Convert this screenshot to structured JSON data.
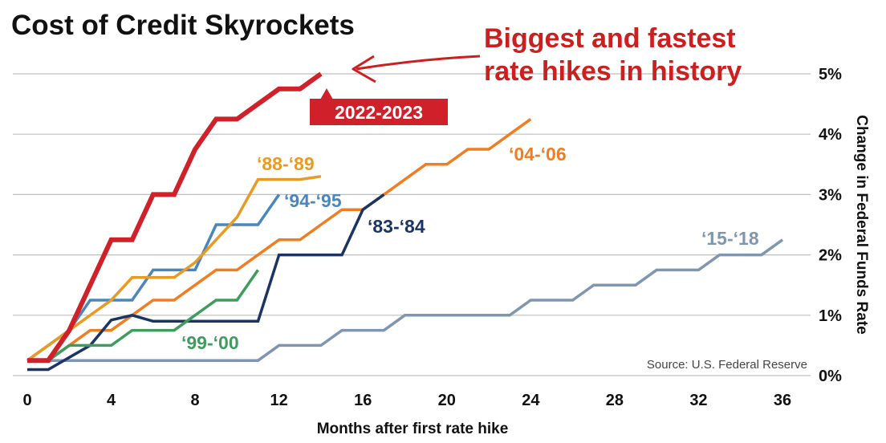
{
  "title": "Cost of Credit Skyrockets",
  "callout": [
    "Biggest and fastest",
    "rate hikes in history"
  ],
  "source": "Source: U.S. Federal Reserve",
  "colors": {
    "accent": "#cc1f1f",
    "grid": "#bdbdbd"
  },
  "chart_data": {
    "type": "line",
    "title": "Cost of Credit Skyrockets",
    "xlabel": "Months after first rate hike",
    "ylabel": "Change in Federal Funds Rate",
    "xlim": [
      0,
      36
    ],
    "ylim": [
      0,
      5
    ],
    "x_ticks": [
      0,
      4,
      8,
      12,
      16,
      20,
      24,
      28,
      32,
      36
    ],
    "x_tick_labels": [
      "0",
      "4",
      "8",
      "12",
      "16",
      "20",
      "24",
      "28",
      "32",
      "36"
    ],
    "y_ticks": [
      0,
      1,
      2,
      3,
      4,
      5
    ],
    "y_tick_labels": [
      "0%",
      "1%",
      "2%",
      "3%",
      "4%",
      "5%"
    ],
    "grid": true,
    "series": [
      {
        "name": "'15-'18",
        "color": "#8096b0",
        "x": [
          0,
          1,
          2,
          3,
          4,
          5,
          6,
          7,
          8,
          9,
          10,
          11,
          12,
          13,
          14,
          15,
          16,
          17,
          18,
          19,
          20,
          21,
          22,
          23,
          24,
          25,
          26,
          27,
          28,
          29,
          30,
          31,
          32,
          33,
          34,
          35,
          36
        ],
        "values": [
          0.25,
          0.25,
          0.25,
          0.25,
          0.25,
          0.25,
          0.25,
          0.25,
          0.25,
          0.25,
          0.25,
          0.25,
          0.5,
          0.5,
          0.5,
          0.75,
          0.75,
          0.75,
          1.0,
          1.0,
          1.0,
          1.0,
          1.0,
          1.0,
          1.25,
          1.25,
          1.25,
          1.5,
          1.5,
          1.5,
          1.75,
          1.75,
          1.75,
          2.0,
          2.0,
          2.0,
          2.25
        ]
      },
      {
        "name": "'04-'06",
        "color": "#ef7d22",
        "x": [
          0,
          1,
          2,
          3,
          4,
          5,
          6,
          7,
          8,
          9,
          10,
          11,
          12,
          13,
          14,
          15,
          16,
          17,
          18,
          19,
          20,
          21,
          22,
          23,
          24
        ],
        "values": [
          0.25,
          0.25,
          0.5,
          0.75,
          0.75,
          1.0,
          1.25,
          1.25,
          1.5,
          1.75,
          1.75,
          2.0,
          2.25,
          2.25,
          2.5,
          2.75,
          2.75,
          3.0,
          3.25,
          3.5,
          3.5,
          3.75,
          3.75,
          4.0,
          4.25
        ]
      },
      {
        "name": "'83-'84",
        "color": "#1c3461",
        "x": [
          0,
          1,
          2,
          3,
          4,
          5,
          6,
          7,
          8,
          9,
          10,
          11,
          12,
          13,
          14,
          15,
          16,
          17
        ],
        "values": [
          0.1,
          0.1,
          0.3,
          0.5,
          0.92,
          1.0,
          0.9,
          0.9,
          0.9,
          0.9,
          0.9,
          0.9,
          2.0,
          2.0,
          2.0,
          2.0,
          2.75,
          3.0
        ]
      },
      {
        "name": "'99-'00",
        "color": "#3f9c5e",
        "x": [
          0,
          1,
          2,
          3,
          4,
          5,
          6,
          7,
          8,
          9,
          10,
          11
        ],
        "values": [
          0.25,
          0.25,
          0.5,
          0.5,
          0.5,
          0.75,
          0.75,
          0.75,
          1.0,
          1.25,
          1.25,
          1.75
        ]
      },
      {
        "name": "'94-'95",
        "color": "#4a86bd",
        "x": [
          0,
          1,
          2,
          3,
          4,
          5,
          6,
          7,
          8,
          9,
          10,
          11,
          12
        ],
        "values": [
          0.25,
          0.5,
          0.75,
          1.25,
          1.25,
          1.25,
          1.75,
          1.75,
          1.75,
          2.5,
          2.5,
          2.5,
          3.0
        ]
      },
      {
        "name": "'88-'89",
        "color": "#e89a22",
        "x": [
          0,
          1,
          2,
          3,
          4,
          5,
          6,
          7,
          8,
          9,
          10,
          11,
          12,
          13,
          14
        ],
        "values": [
          0.25,
          0.5,
          0.75,
          1.0,
          1.25,
          1.625,
          1.625,
          1.625,
          1.875,
          2.25,
          2.625,
          3.25,
          3.25,
          3.25,
          3.3
        ]
      },
      {
        "name": "2022-2023",
        "color": "#d0202a",
        "x": [
          0,
          1,
          2,
          3,
          4,
          5,
          6,
          7,
          8,
          9,
          10,
          11,
          12,
          13,
          14
        ],
        "values": [
          0.25,
          0.25,
          0.75,
          1.5,
          2.25,
          2.25,
          3.0,
          3.0,
          3.75,
          4.25,
          4.25,
          4.5,
          4.75,
          4.75,
          5.0
        ]
      }
    ]
  }
}
